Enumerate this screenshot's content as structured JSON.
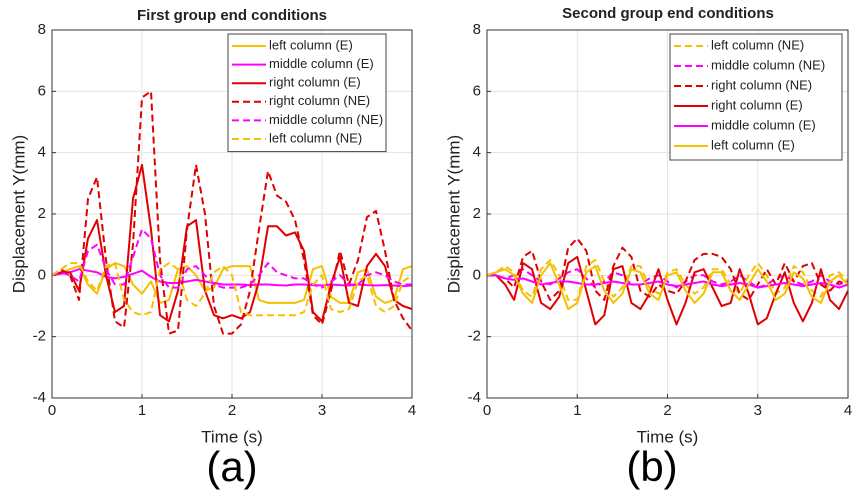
{
  "chart_data": [
    {
      "type": "line",
      "title": "First group end conditions",
      "panel_label": "(a)",
      "xlabel": "Time (s)",
      "ylabel": "Displacement Y(mm)",
      "xlim": [
        0,
        4
      ],
      "ylim": [
        -4,
        8
      ],
      "xticks": [
        0,
        1,
        2,
        3,
        4
      ],
      "yticks": [
        -4,
        -2,
        0,
        2,
        4,
        6,
        8
      ],
      "grid": true,
      "legend": "upper right",
      "x": [
        0,
        0.1,
        0.2,
        0.3,
        0.4,
        0.5,
        0.6,
        0.7,
        0.8,
        0.9,
        1,
        1.1,
        1.2,
        1.3,
        1.4,
        1.5,
        1.6,
        1.7,
        1.8,
        1.9,
        2,
        2.1,
        2.2,
        2.3,
        2.4,
        2.5,
        2.6,
        2.7,
        2.8,
        2.9,
        3,
        3.1,
        3.2,
        3.3,
        3.4,
        3.5,
        3.6,
        3.7,
        3.8,
        3.9,
        4
      ],
      "series": [
        {
          "name": "left column (E)",
          "color": "#f5c000",
          "style": "solid",
          "values": [
            0,
            0.1,
            0.2,
            0.3,
            -0.3,
            -0.6,
            0.2,
            0.4,
            0.3,
            -0.3,
            -0.6,
            -0.2,
            -0.9,
            -0.8,
            0.2,
            0.3,
            0,
            -0.5,
            -0.4,
            0.2,
            0.3,
            0.3,
            0.3,
            -0.8,
            -0.9,
            -0.9,
            -0.9,
            -0.9,
            -0.8,
            0.2,
            0.3,
            -0.7,
            -0.9,
            -0.9,
            0.1,
            0.2,
            -0.7,
            -0.9,
            -0.8,
            0.2,
            0.3
          ]
        },
        {
          "name": "middle column (E)",
          "color": "#ff00ff",
          "style": "solid",
          "values": [
            0,
            0.05,
            0.1,
            0.2,
            0.15,
            0.1,
            -0.05,
            -0.1,
            -0.05,
            0.05,
            0.15,
            -0.05,
            -0.2,
            -0.25,
            -0.25,
            -0.2,
            -0.15,
            -0.2,
            -0.25,
            -0.3,
            -0.3,
            -0.3,
            -0.32,
            -0.3,
            -0.3,
            -0.32,
            -0.33,
            -0.3,
            -0.3,
            -0.32,
            -0.33,
            -0.3,
            -0.32,
            -0.33,
            -0.3,
            -0.32,
            -0.33,
            -0.32,
            -0.33,
            -0.35,
            -0.33
          ]
        },
        {
          "name": "right column (E)",
          "color": "#e00000",
          "style": "solid",
          "values": [
            0,
            0.1,
            0.1,
            -0.5,
            1.2,
            1.8,
            0,
            -1.2,
            -1,
            2.5,
            3.6,
            1.5,
            -1.3,
            -1.5,
            -0.5,
            1.6,
            1.8,
            -0.5,
            -1.3,
            -1.4,
            -1.3,
            -1.4,
            -1.2,
            -0.2,
            1.6,
            1.6,
            1.3,
            1.4,
            0.8,
            -1.2,
            -1.5,
            -0.3,
            0.6,
            -0.9,
            -1,
            0.3,
            0.7,
            0.3,
            -0.8,
            -1,
            -1.1
          ]
        },
        {
          "name": "right column (NE)",
          "color": "#e00000",
          "style": "dashed",
          "values": [
            0,
            0.2,
            0,
            -0.8,
            2.5,
            3.2,
            0.5,
            -1.5,
            -1.7,
            1,
            5.8,
            6,
            0.5,
            -1.9,
            -1.8,
            1.5,
            3.6,
            2,
            -1,
            -1.9,
            -1.9,
            -1.6,
            -0.5,
            1.5,
            3.4,
            2.6,
            2.4,
            1.8,
            0.5,
            -1.3,
            -1.6,
            -0.5,
            0.8,
            -0.3,
            0.5,
            1.9,
            2.1,
            0.8,
            -0.8,
            -1.4,
            -1.8
          ]
        },
        {
          "name": "middle column (NE)",
          "color": "#ff00ff",
          "style": "dashed",
          "values": [
            0,
            0.1,
            0,
            -0.2,
            0.8,
            1,
            0.2,
            -0.3,
            -0.3,
            0.6,
            1.5,
            1.2,
            0,
            -0.4,
            -0.4,
            0.2,
            0.3,
            0,
            -0.3,
            -0.4,
            -0.4,
            -0.4,
            -0.3,
            0,
            0.4,
            0.1,
            0,
            -0.1,
            -0.1,
            -0.3,
            -0.4,
            -0.2,
            0,
            -0.3,
            -0.3,
            0,
            0.1,
            0,
            -0.2,
            -0.3,
            -0.3
          ]
        },
        {
          "name": "left column (NE)",
          "color": "#f5c000",
          "style": "dashed",
          "values": [
            0,
            0.2,
            0.4,
            0.4,
            -0.2,
            -0.5,
            0.3,
            0.4,
            -0.8,
            -1.2,
            -1.3,
            -1.2,
            0.2,
            0.4,
            0.2,
            -0.8,
            -1,
            -0.6,
            0.1,
            0.3,
            0,
            -1.2,
            -1.3,
            -1.3,
            -1.3,
            -1.3,
            -1.3,
            -1.3,
            -1.2,
            -0.3,
            0,
            -1.1,
            -1.2,
            -1.1,
            -0.2,
            0,
            -1,
            -1.2,
            -1,
            -0.2,
            0
          ]
        }
      ]
    },
    {
      "type": "line",
      "title": "Second group end conditions",
      "panel_label": "(b)",
      "xlabel": "Time (s)",
      "ylabel": "Displacement Y(mm)",
      "xlim": [
        0,
        4
      ],
      "ylim": [
        -4,
        8
      ],
      "xticks": [
        0,
        1,
        2,
        3,
        4
      ],
      "yticks": [
        -4,
        -2,
        0,
        2,
        4,
        6,
        8
      ],
      "grid": true,
      "legend": "upper right",
      "x": [
        0,
        0.1,
        0.2,
        0.3,
        0.4,
        0.5,
        0.6,
        0.7,
        0.8,
        0.9,
        1,
        1.1,
        1.2,
        1.3,
        1.4,
        1.5,
        1.6,
        1.7,
        1.8,
        1.9,
        2,
        2.1,
        2.2,
        2.3,
        2.4,
        2.5,
        2.6,
        2.7,
        2.8,
        2.9,
        3,
        3.1,
        3.2,
        3.3,
        3.4,
        3.5,
        3.6,
        3.7,
        3.8,
        3.9,
        4
      ],
      "series": [
        {
          "name": "left column (NE)",
          "color": "#f5c000",
          "style": "dashed",
          "values": [
            0,
            0.1,
            0.3,
            0.1,
            -0.5,
            -0.7,
            0.2,
            0.5,
            0,
            -0.8,
            -0.8,
            0.3,
            0.5,
            -0.2,
            -0.7,
            -0.4,
            0.3,
            0.3,
            -0.4,
            -0.6,
            0.1,
            0.2,
            -0.3,
            -0.6,
            -0.4,
            0.2,
            0.2,
            -0.3,
            -0.6,
            0,
            0.4,
            0,
            -0.6,
            -0.4,
            0.3,
            0.1,
            -0.5,
            -0.7,
            0,
            0.1,
            -0.2
          ]
        },
        {
          "name": "middle column (NE)",
          "color": "#ff00ff",
          "style": "dashed",
          "values": [
            0,
            0,
            -0.1,
            0,
            0.2,
            0,
            -0.2,
            -0.3,
            -0.1,
            0.1,
            0.2,
            -0.1,
            -0.4,
            -0.2,
            0.1,
            0,
            -0.3,
            -0.3,
            -0.1,
            0,
            -0.2,
            -0.4,
            -0.2,
            0,
            0,
            -0.2,
            -0.3,
            -0.2,
            0,
            -0.2,
            -0.4,
            -0.3,
            -0.1,
            0,
            -0.2,
            -0.3,
            -0.2,
            0,
            -0.2,
            -0.3,
            -0.2
          ]
        },
        {
          "name": "right column (NE)",
          "color": "#e00000",
          "style": "dashed",
          "values": [
            0,
            0,
            -0.1,
            -0.4,
            0.6,
            0.8,
            -0.2,
            -0.8,
            -0.5,
            0.9,
            1.2,
            0.8,
            -0.5,
            -0.8,
            0.3,
            0.9,
            0.6,
            -0.5,
            -0.7,
            -0.3,
            -0.5,
            -0.6,
            -0.2,
            0.5,
            0.7,
            0.7,
            0.6,
            0.2,
            -0.6,
            -0.8,
            -0.3,
            0.2,
            -0.3,
            0.4,
            -0.2,
            0.3,
            0.4,
            -0.3,
            -0.5,
            -0.2,
            -0.3
          ]
        },
        {
          "name": "right column (E)",
          "color": "#e00000",
          "style": "solid",
          "values": [
            0,
            0,
            -0.3,
            -0.8,
            0.4,
            0.2,
            -0.9,
            -1.1,
            -0.7,
            0.4,
            0.6,
            -0.5,
            -1.6,
            -1.3,
            0.2,
            0.3,
            -0.9,
            -1.1,
            -0.6,
            0.2,
            -0.8,
            -1.6,
            -0.9,
            0.1,
            0.2,
            -0.4,
            -1,
            -0.9,
            0.2,
            -0.6,
            -1.6,
            -1.4,
            -0.6,
            0.1,
            -0.9,
            -1.5,
            -0.9,
            0.2,
            -0.8,
            -1.1,
            -0.5
          ]
        },
        {
          "name": "middle column (E)",
          "color": "#ff00ff",
          "style": "solid",
          "values": [
            0,
            0,
            -0.1,
            -0.15,
            -0.1,
            -0.2,
            -0.3,
            -0.25,
            -0.2,
            -0.2,
            -0.25,
            -0.3,
            -0.3,
            -0.25,
            -0.2,
            -0.25,
            -0.3,
            -0.3,
            -0.25,
            -0.2,
            -0.3,
            -0.35,
            -0.3,
            -0.25,
            -0.2,
            -0.3,
            -0.35,
            -0.3,
            -0.25,
            -0.3,
            -0.4,
            -0.35,
            -0.3,
            -0.25,
            -0.3,
            -0.35,
            -0.3,
            -0.25,
            -0.3,
            -0.4,
            -0.3
          ]
        },
        {
          "name": "left column (E)",
          "color": "#f5c000",
          "style": "solid",
          "values": [
            0,
            0.1,
            0.2,
            0,
            -0.6,
            -0.9,
            0,
            0.4,
            -0.3,
            -1.1,
            -0.9,
            0.1,
            0.3,
            -0.5,
            -0.9,
            -0.6,
            0.2,
            0.1,
            -0.6,
            -0.8,
            0,
            0.1,
            -0.5,
            -0.9,
            -0.6,
            0.1,
            0.1,
            -0.5,
            -0.8,
            -0.3,
            0.2,
            -0.2,
            -0.8,
            -0.6,
            0.1,
            -0.1,
            -0.7,
            -0.9,
            -0.2,
            0,
            -0.3
          ]
        }
      ]
    }
  ]
}
